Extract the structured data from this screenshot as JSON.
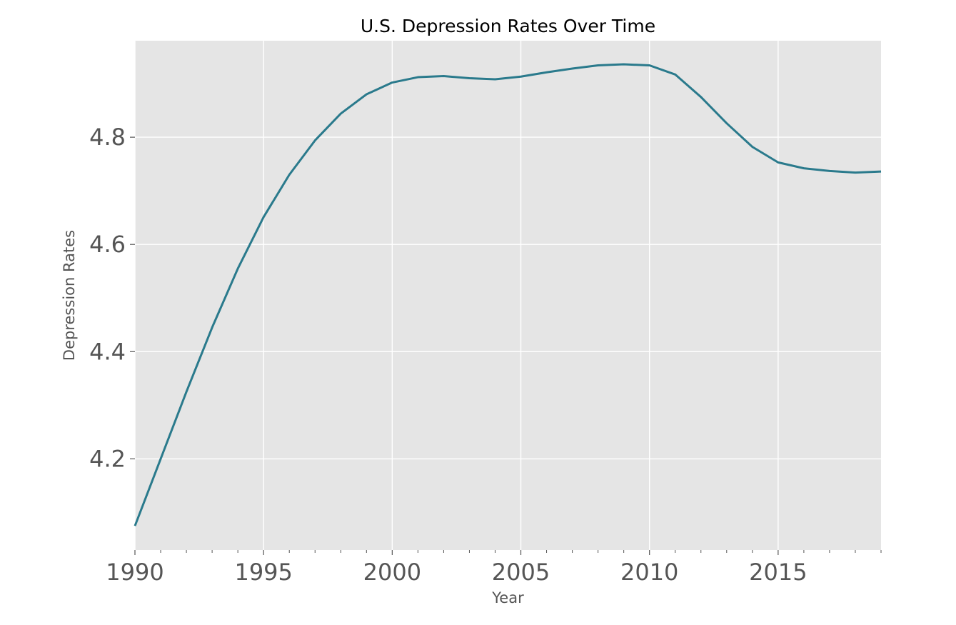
{
  "chart_data": {
    "type": "line",
    "title": "U.S. Depression Rates Over Time",
    "xlabel": "Year",
    "ylabel": "Depression Rates",
    "xlim": [
      1990,
      2019
    ],
    "ylim": [
      4.03,
      4.98
    ],
    "x_ticks": [
      1990,
      1995,
      2000,
      2005,
      2010,
      2015
    ],
    "x_tick_labels": [
      "1990",
      "1995",
      "2000",
      "2005",
      "2010",
      "2015"
    ],
    "y_ticks": [
      4.2,
      4.4,
      4.6,
      4.8
    ],
    "y_tick_labels": [
      "4.2",
      "4.4",
      "4.6",
      "4.8"
    ],
    "grid": true,
    "background_color": "#e5e5e5",
    "grid_color": "#ffffff",
    "line_color": "#2a7a8c",
    "series": [
      {
        "x": [
          1990,
          1991,
          1992,
          1993,
          1994,
          1995,
          1996,
          1997,
          1998,
          1999,
          2000,
          2001,
          2002,
          2003,
          2004,
          2005,
          2006,
          2007,
          2008,
          2009,
          2010,
          2011,
          2012,
          2013,
          2014,
          2015,
          2016,
          2017,
          2018,
          2019
        ],
        "values": [
          4.075,
          4.2,
          4.325,
          4.445,
          4.555,
          4.651,
          4.73,
          4.794,
          4.844,
          4.88,
          4.902,
          4.912,
          4.914,
          4.91,
          4.908,
          4.913,
          4.921,
          4.928,
          4.934,
          4.936,
          4.934,
          4.917,
          4.875,
          4.826,
          4.782,
          4.753,
          4.742,
          4.737,
          4.734,
          4.736
        ]
      }
    ]
  }
}
